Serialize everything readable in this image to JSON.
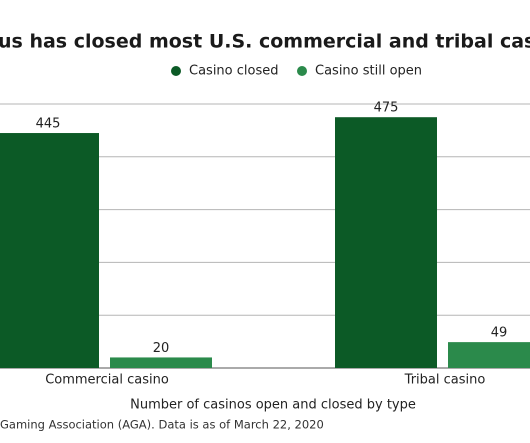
{
  "chart_data": {
    "type": "bar",
    "title": "us has closed most U.S. commercial and tribal casi",
    "categories": [
      "Commercial casino",
      "Tribal casino"
    ],
    "series": [
      {
        "name": "Casino closed",
        "color": "#0c5a26",
        "values": [
          445,
          475
        ]
      },
      {
        "name": "Casino still open",
        "color": "#2b8a4b",
        "values": [
          20,
          49
        ]
      }
    ],
    "ylim": [
      0,
      500
    ],
    "yticks": [
      0,
      100,
      200,
      300,
      400,
      500
    ],
    "grid": true,
    "x_label": "Number of casinos open and closed by type",
    "source": "Gaming Association (AGA). Data is as of March 22, 2020"
  }
}
